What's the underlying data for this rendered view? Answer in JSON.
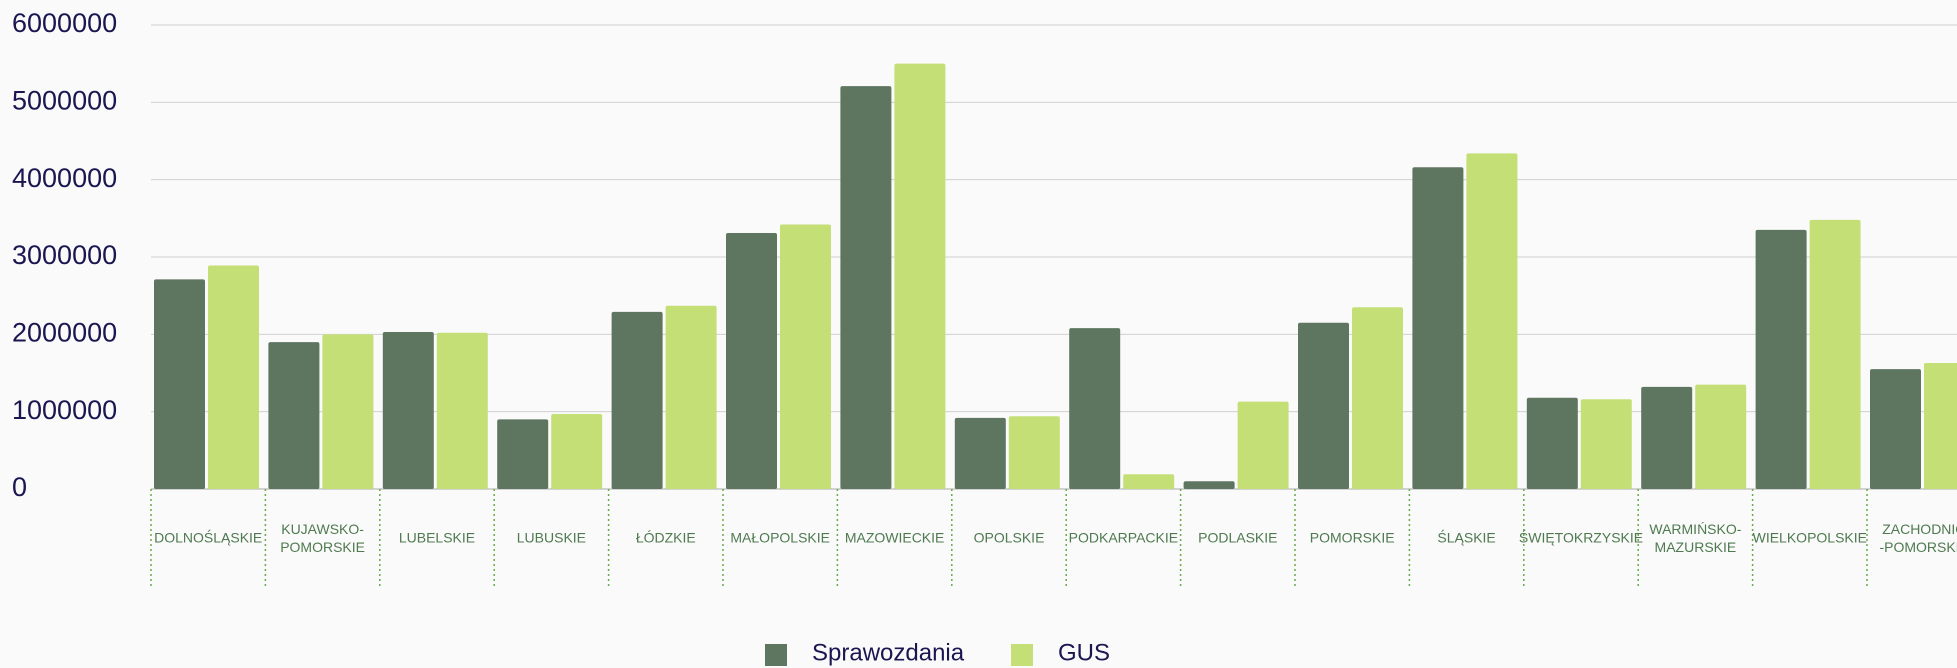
{
  "chart_data": {
    "type": "bar",
    "categories": [
      "DOLNOŚLĄSKIE",
      "KUJAWSKO-\nPOMORSKIE",
      "LUBELSKIE",
      "LUBUSKIE",
      "ŁÓDZKIE",
      "MAŁOPOLSKIE",
      "MAZOWIECKIE",
      "OPOLSKIE",
      "PODKARPACKIE",
      "PODLASKIE",
      "POMORSKIE",
      "ŚLĄSKIE",
      "ŚWIĘTOKRZYSKIE",
      "WARMIŃSKO-\nMAZURSKIE",
      "WIELKOPOLSKIE",
      "ZACHODNIO\n-POMORSKIE"
    ],
    "series": [
      {
        "name": "Sprawozdania",
        "color": "#5e7560",
        "values": [
          2710000,
          1900000,
          2030000,
          900000,
          2290000,
          3310000,
          5210000,
          920000,
          2080000,
          100000,
          2150000,
          4160000,
          1180000,
          1320000,
          3350000,
          1550000
        ]
      },
      {
        "name": "GUS",
        "color": "#c5df77",
        "values": [
          2890000,
          2000000,
          2020000,
          970000,
          2370000,
          3420000,
          5500000,
          940000,
          190000,
          1130000,
          2350000,
          4340000,
          1160000,
          1350000,
          3480000,
          1630000
        ]
      }
    ],
    "ylim": [
      0,
      6000000
    ],
    "yticks": [
      0,
      1000000,
      2000000,
      3000000,
      4000000,
      5000000,
      6000000
    ],
    "grid": true,
    "legend": "bottom"
  }
}
